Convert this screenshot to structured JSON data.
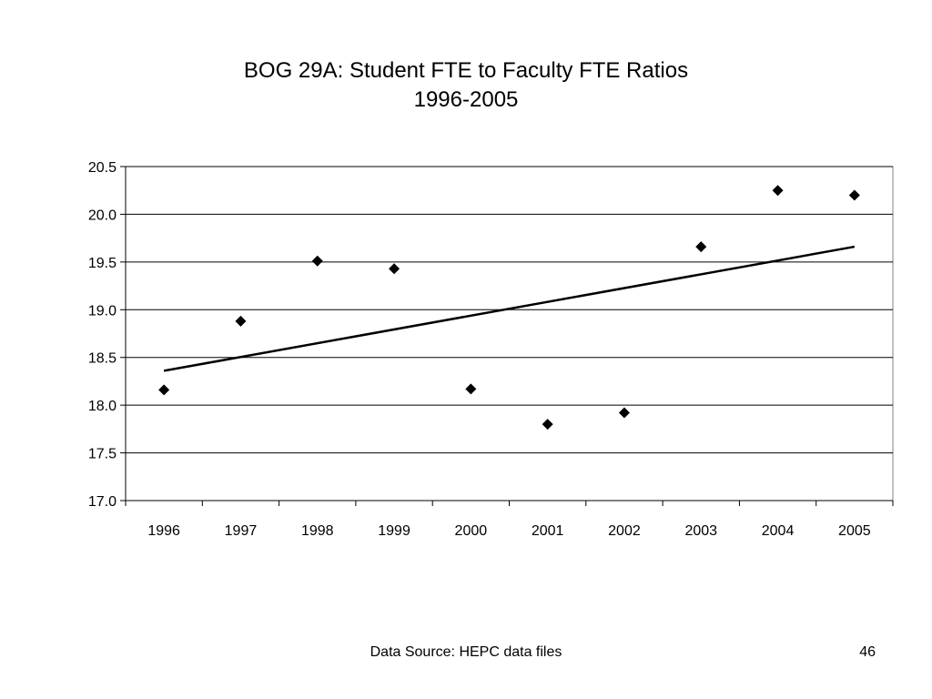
{
  "slide": {
    "footer_source": "Data Source: HEPC data files",
    "page_number": "46"
  },
  "chart_data": {
    "type": "scatter",
    "title": "BOG 29A: Student FTE to Faculty FTE Ratios",
    "subtitle": "1996-2005",
    "xlabel": "",
    "ylabel": "",
    "categories": [
      "1996",
      "1997",
      "1998",
      "1999",
      "2000",
      "2001",
      "2002",
      "2003",
      "2004",
      "2005"
    ],
    "values": [
      18.16,
      18.88,
      19.51,
      19.43,
      18.17,
      17.8,
      17.92,
      19.66,
      20.25,
      20.2
    ],
    "ylim": [
      17.0,
      20.5
    ],
    "yticks": [
      "17.0",
      "17.5",
      "18.0",
      "18.5",
      "19.0",
      "19.5",
      "20.0",
      "20.5"
    ],
    "trendline": {
      "type": "linear",
      "start": 18.36,
      "end": 19.66
    },
    "marker": "diamond",
    "colors": {
      "marker": "#000000",
      "trendline": "#000000",
      "grid": "#000000",
      "plot_border": "#808080"
    },
    "grid": true,
    "legend": "none"
  }
}
